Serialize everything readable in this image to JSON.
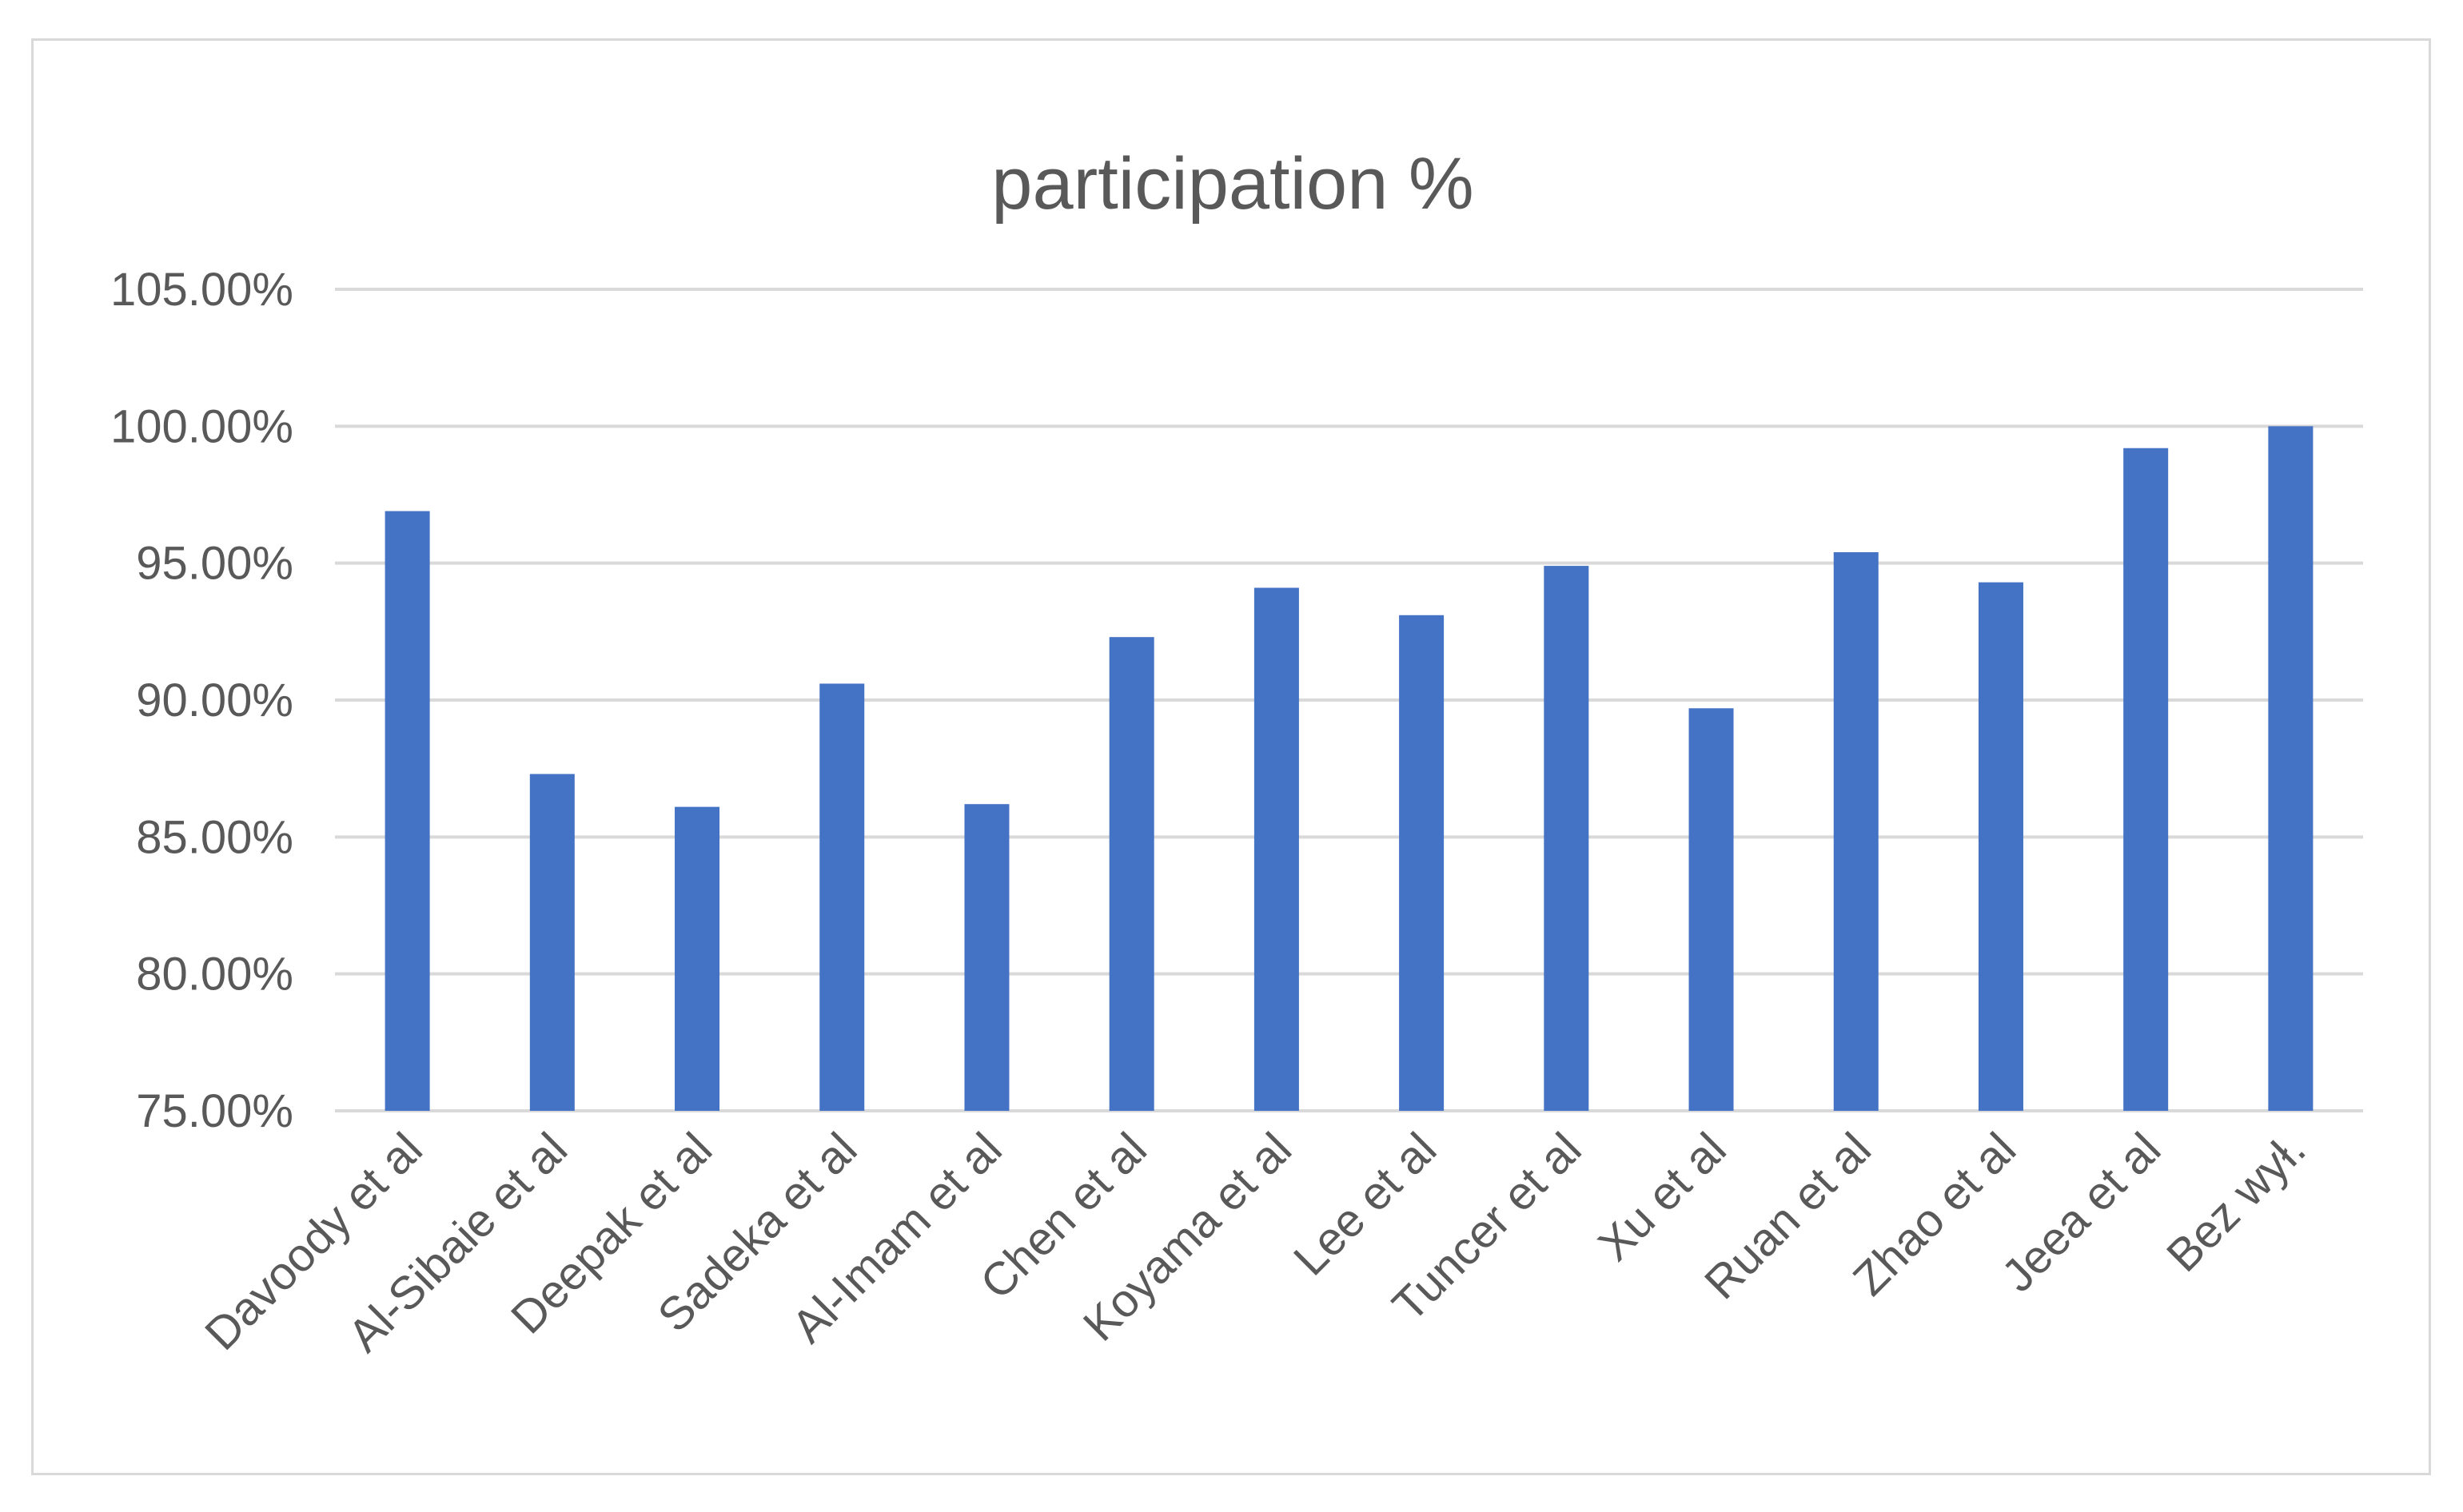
{
  "chart_data": {
    "type": "bar",
    "title": "participation %",
    "xlabel": "",
    "ylabel": "",
    "categories": [
      "Davoody et al",
      "Al-Sibaie et al",
      "Deepak et al",
      "Sadeka et al",
      "Al-Imam et al",
      "Chen et al",
      "Koyama et al",
      "Lee et al",
      "Tuncer et al",
      "Xu et al",
      "Ruan et al",
      "Zhao et al",
      "Jeea et al",
      "Bez wył."
    ],
    "values": [
      96.9,
      87.3,
      86.1,
      90.6,
      86.2,
      92.3,
      94.1,
      93.1,
      94.9,
      89.7,
      95.4,
      94.3,
      99.2,
      100.0
    ],
    "ylim": [
      75,
      105
    ],
    "yticks": [
      "75.00%",
      "80.00%",
      "85.00%",
      "90.00%",
      "95.00%",
      "100.00%",
      "105.00%"
    ],
    "ytick_values": [
      75,
      80,
      85,
      90,
      95,
      100,
      105
    ],
    "grid": true,
    "legend": "none",
    "bar_color": "#4472c4",
    "grid_color": "#d9d9d9",
    "text_color": "#595959"
  }
}
